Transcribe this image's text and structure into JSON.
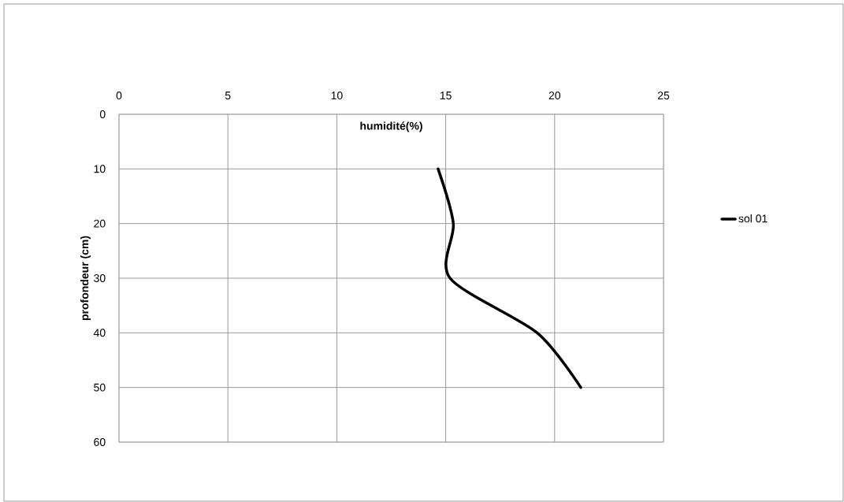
{
  "chart_data": {
    "type": "line",
    "title": "humidité(%)",
    "ylabel": "profondeur (cm)",
    "series": [
      {
        "name": "sol 01",
        "color": "#000000",
        "x": [
          14.65,
          15.35,
          15.2,
          19.2,
          21.2
        ],
        "values": [
          10,
          20,
          30,
          40,
          50
        ]
      }
    ],
    "xlim": [
      0,
      25
    ],
    "xticks": [
      0,
      5,
      10,
      15,
      20,
      25
    ],
    "ylim": [
      60,
      0
    ],
    "yticks": [
      0,
      10,
      20,
      30,
      40,
      50,
      60
    ],
    "grid": true,
    "legend": "right",
    "marker": "none",
    "line_style": "solid"
  }
}
